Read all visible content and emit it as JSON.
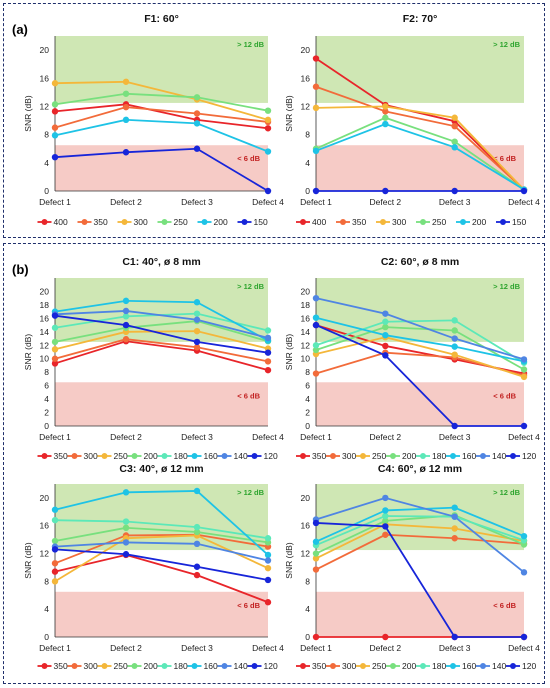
{
  "panel_labels": {
    "a": "(a)",
    "b": "(b)"
  },
  "zone_labels": {
    "high": "> 12 dB",
    "low": "< 6 dB"
  },
  "colors": {
    "green_zone": "#cfe7b4",
    "red_zone": "#f6cbc6",
    "frame": "#1f2f6b"
  },
  "chart_data": [
    {
      "id": "F1",
      "type": "line",
      "title": "F1: 60°",
      "ylabel": "SNR (dB)",
      "categories": [
        "Defect 1",
        "Defect 2",
        "Defect 3",
        "Defect 4"
      ],
      "ylim": [
        0,
        22
      ],
      "yticks": [
        0,
        4,
        8,
        12,
        16,
        20
      ],
      "zones": {
        "green_from": 12.5,
        "red_to": 6.5
      },
      "series": [
        {
          "name": "400",
          "color": "#e8252a",
          "values": [
            11.3,
            12.3,
            10.1,
            8.9
          ]
        },
        {
          "name": "350",
          "color": "#f26b3a",
          "values": [
            9.0,
            11.9,
            11.0,
            9.8
          ]
        },
        {
          "name": "300",
          "color": "#f4b73a",
          "values": [
            15.3,
            15.5,
            13.0,
            10.1
          ]
        },
        {
          "name": "250",
          "color": "#78e07e",
          "values": [
            12.3,
            13.8,
            13.3,
            11.4
          ]
        },
        {
          "name": "200",
          "color": "#1ec3e6",
          "values": [
            7.9,
            10.1,
            9.6,
            5.6
          ]
        },
        {
          "name": "150",
          "color": "#1725d9",
          "values": [
            4.8,
            5.5,
            6.0,
            0.0
          ]
        }
      ]
    },
    {
      "id": "F2",
      "type": "line",
      "title": "F2: 70°",
      "ylabel": "SNR (dB)",
      "categories": [
        "Defect 1",
        "Defect 2",
        "Defect 3",
        "Defect 4"
      ],
      "ylim": [
        0,
        22
      ],
      "yticks": [
        0,
        4,
        8,
        12,
        16,
        20
      ],
      "zones": {
        "green_from": 12.5,
        "red_to": 6.5
      },
      "series": [
        {
          "name": "400",
          "color": "#e8252a",
          "values": [
            18.8,
            12.2,
            9.9,
            0.2
          ]
        },
        {
          "name": "350",
          "color": "#f26b3a",
          "values": [
            14.8,
            11.3,
            9.2,
            0.2
          ]
        },
        {
          "name": "300",
          "color": "#f4b73a",
          "values": [
            11.8,
            12.0,
            10.4,
            0.2
          ]
        },
        {
          "name": "250",
          "color": "#78e07e",
          "values": [
            6.0,
            10.4,
            7.0,
            0.2
          ]
        },
        {
          "name": "200",
          "color": "#1ec3e6",
          "values": [
            5.7,
            9.5,
            6.2,
            0.2
          ]
        },
        {
          "name": "150",
          "color": "#1725d9",
          "values": [
            0.0,
            0.0,
            0.0,
            0.0
          ]
        }
      ]
    },
    {
      "id": "C1",
      "type": "line",
      "title": "C1: 40°, ø 8 mm",
      "ylabel": "SNR (dB)",
      "categories": [
        "Defect 1",
        "Defect 2",
        "Defect 3",
        "Defect 4"
      ],
      "ylim": [
        0,
        22
      ],
      "yticks": [
        0,
        2,
        4,
        6,
        8,
        10,
        12,
        14,
        16,
        18,
        20
      ],
      "zones": {
        "green_from": 12.5,
        "red_to": 6.5
      },
      "series": [
        {
          "name": "350",
          "color": "#e8252a",
          "values": [
            9.3,
            12.6,
            11.2,
            8.3
          ]
        },
        {
          "name": "300",
          "color": "#f26b3a",
          "values": [
            10.0,
            12.9,
            11.7,
            9.6
          ]
        },
        {
          "name": "250",
          "color": "#f4b73a",
          "values": [
            11.4,
            14.0,
            14.1,
            11.5
          ]
        },
        {
          "name": "200",
          "color": "#78e07e",
          "values": [
            12.5,
            14.6,
            15.6,
            12.6
          ]
        },
        {
          "name": "180",
          "color": "#5ce8b8",
          "values": [
            14.6,
            16.3,
            16.7,
            14.2
          ]
        },
        {
          "name": "160",
          "color": "#1ec3e6",
          "values": [
            17.0,
            18.6,
            18.4,
            12.7
          ]
        },
        {
          "name": "140",
          "color": "#4f85e3",
          "values": [
            16.6,
            17.1,
            15.8,
            13.1
          ]
        },
        {
          "name": "120",
          "color": "#1725d9",
          "values": [
            16.4,
            15.0,
            12.5,
            10.9
          ]
        }
      ]
    },
    {
      "id": "C2",
      "type": "line",
      "title": "C2: 60°, ø 8 mm",
      "ylabel": "SNR (dB)",
      "categories": [
        "Defect 1",
        "Defect 2",
        "Defect 3",
        "Defect 4"
      ],
      "ylim": [
        0,
        22
      ],
      "yticks": [
        0,
        2,
        4,
        6,
        8,
        10,
        12,
        14,
        16,
        18,
        20
      ],
      "zones": {
        "green_from": 12.5,
        "red_to": 6.5
      },
      "series": [
        {
          "name": "350",
          "color": "#e8252a",
          "values": [
            15.0,
            11.9,
            9.9,
            7.8
          ]
        },
        {
          "name": "300",
          "color": "#f26b3a",
          "values": [
            7.8,
            10.9,
            10.2,
            7.5
          ]
        },
        {
          "name": "250",
          "color": "#f4b73a",
          "values": [
            10.7,
            13.2,
            10.6,
            7.3
          ]
        },
        {
          "name": "200",
          "color": "#78e07e",
          "values": [
            11.3,
            14.7,
            14.2,
            8.4
          ]
        },
        {
          "name": "180",
          "color": "#5ce8b8",
          "values": [
            12.0,
            15.5,
            15.7,
            9.4
          ]
        },
        {
          "name": "160",
          "color": "#1ec3e6",
          "values": [
            16.1,
            13.5,
            11.8,
            9.6
          ]
        },
        {
          "name": "140",
          "color": "#4f85e3",
          "values": [
            19.0,
            16.7,
            13.0,
            9.9
          ]
        },
        {
          "name": "120",
          "color": "#1725d9",
          "values": [
            15.0,
            10.5,
            0.0,
            0.0
          ]
        }
      ]
    },
    {
      "id": "C3",
      "type": "line",
      "title": "C3: 40°, ø 12 mm",
      "ylabel": "SNR (dB)",
      "categories": [
        "Defect 1",
        "Defect 2",
        "Defect 3",
        "Defect 4"
      ],
      "ylim": [
        0,
        22
      ],
      "yticks": [
        0,
        4,
        8,
        12,
        16,
        20
      ],
      "zones": {
        "green_from": 12.5,
        "red_to": 6.5
      },
      "series": [
        {
          "name": "350",
          "color": "#e8252a",
          "values": [
            9.4,
            11.8,
            8.9,
            5.0
          ]
        },
        {
          "name": "300",
          "color": "#f26b3a",
          "values": [
            10.6,
            14.6,
            14.7,
            13.0
          ]
        },
        {
          "name": "250",
          "color": "#f4b73a",
          "values": [
            8.0,
            14.2,
            14.6,
            9.9
          ]
        },
        {
          "name": "200",
          "color": "#78e07e",
          "values": [
            13.8,
            15.7,
            15.1,
            13.6
          ]
        },
        {
          "name": "180",
          "color": "#5ce8b8",
          "values": [
            16.8,
            16.6,
            15.8,
            14.2
          ]
        },
        {
          "name": "160",
          "color": "#1ec3e6",
          "values": [
            18.3,
            20.8,
            21.0,
            11.8
          ]
        },
        {
          "name": "140",
          "color": "#4f85e3",
          "values": [
            13.0,
            13.6,
            13.4,
            11.0
          ]
        },
        {
          "name": "120",
          "color": "#1725d9",
          "values": [
            12.6,
            11.9,
            10.1,
            8.2
          ]
        }
      ]
    },
    {
      "id": "C4",
      "type": "line",
      "title": "C4: 60°, ø 12 mm",
      "ylabel": "SNR (dB)",
      "categories": [
        "Defect 1",
        "Defect 2",
        "Defect 3",
        "Defect 4"
      ],
      "ylim": [
        0,
        22
      ],
      "yticks": [
        0,
        4,
        8,
        12,
        16,
        20
      ],
      "zones": {
        "green_from": 12.5,
        "red_to": 6.5
      },
      "series": [
        {
          "name": "350",
          "color": "#e8252a",
          "values": [
            0.0,
            0.0,
            0.0,
            0.0
          ]
        },
        {
          "name": "300",
          "color": "#f26b3a",
          "values": [
            9.7,
            14.7,
            14.2,
            13.4
          ]
        },
        {
          "name": "250",
          "color": "#f4b73a",
          "values": [
            11.3,
            16.2,
            15.6,
            13.8
          ]
        },
        {
          "name": "200",
          "color": "#78e07e",
          "values": [
            12.0,
            16.7,
            17.5,
            13.3
          ]
        },
        {
          "name": "180",
          "color": "#5ce8b8",
          "values": [
            13.2,
            17.4,
            17.3,
            13.9
          ]
        },
        {
          "name": "160",
          "color": "#1ec3e6",
          "values": [
            13.7,
            18.2,
            18.6,
            14.5
          ]
        },
        {
          "name": "140",
          "color": "#4f85e3",
          "values": [
            16.9,
            20.0,
            17.3,
            9.3
          ]
        },
        {
          "name": "120",
          "color": "#1725d9",
          "values": [
            16.4,
            15.9,
            0.0,
            0.0
          ]
        }
      ]
    }
  ]
}
